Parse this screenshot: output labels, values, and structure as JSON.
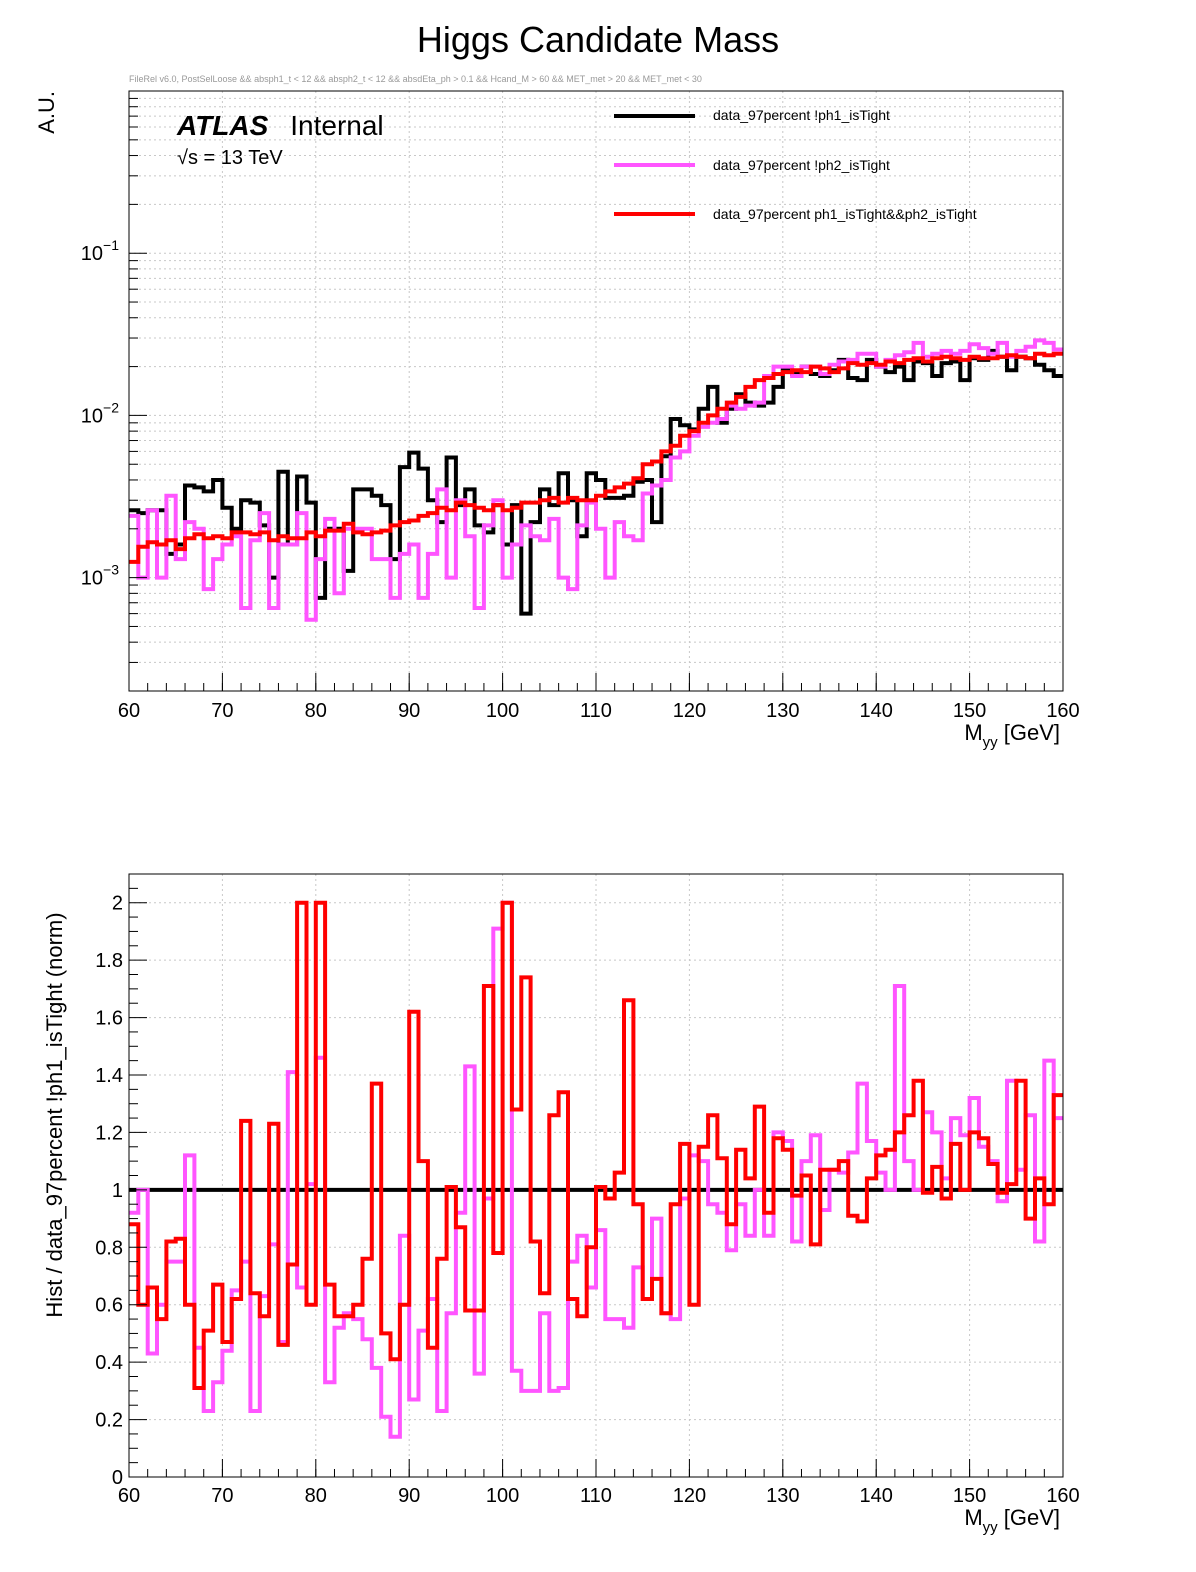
{
  "page": {
    "title": "Higgs Candidate Mass",
    "cut_string": "FileRel v6.0, PostSelLoose &&  absph1_t < 12 && absph2_t < 12 && absdEta_ph > 0.1 && Hcand_M > 60 && MET_met > 20 && MET_met < 30",
    "atlas_label": "ATLAS",
    "atlas_status": "Internal",
    "energy_label": "√s = 13 TeV"
  },
  "colors": {
    "black_series": "#000000",
    "magenta_series": "#ff55ff",
    "red_series": "#ff0000",
    "grid": "#c8c8c8"
  },
  "chart_data": [
    {
      "type": "line",
      "style": "step-histogram",
      "panel": "top",
      "yscale": "log",
      "ylabel": "A.U.",
      "xlabel_main": "M",
      "xlabel_sub": "yy",
      "xlabel_unit": " [GeV]",
      "xlim": [
        60,
        160
      ],
      "ylim": [
        0.0002,
        1
      ],
      "grid": true,
      "legend_placement": "top-right",
      "x_ticks": [
        60,
        70,
        80,
        90,
        100,
        110,
        120,
        130,
        140,
        150,
        160
      ],
      "y_ticks": [
        {
          "value": 0.001,
          "base": "10",
          "exp": "−3"
        },
        {
          "value": 0.01,
          "base": "10",
          "exp": "−2"
        },
        {
          "value": 0.1,
          "base": "10",
          "exp": "−1"
        }
      ],
      "bin_width": 1,
      "series": [
        {
          "name": "data_97percent  !ph1_isTight",
          "color": "#000000",
          "values": [
            0.0026,
            0.0025,
            0.0026,
            0.0026,
            0.0014,
            0.0016,
            0.0037,
            0.0036,
            0.0034,
            0.004,
            0.0027,
            0.002,
            0.003,
            0.0029,
            0.0021,
            0.001,
            0.0045,
            0.0016,
            0.0042,
            0.0029,
            0.00075,
            0.002,
            0.002,
            0.0011,
            0.0035,
            0.0035,
            0.0032,
            0.0028,
            0.0013,
            0.0048,
            0.0059,
            0.0047,
            0.003,
            0.0022,
            0.0055,
            0.0028,
            0.0035,
            0.0021,
            0.0019,
            0.0028,
            0.0016,
            0.0028,
            0.0006,
            0.0022,
            0.0035,
            0.0028,
            0.0044,
            0.003,
            0.0018,
            0.0044,
            0.004,
            0.0031,
            0.0031,
            0.0032,
            0.0039,
            0.004,
            0.0022,
            0.0056,
            0.0095,
            0.0087,
            0.0082,
            0.011,
            0.015,
            0.009,
            0.011,
            0.0135,
            0.012,
            0.0115,
            0.012,
            0.015,
            0.019,
            0.018,
            0.02,
            0.018,
            0.0175,
            0.019,
            0.022,
            0.017,
            0.0165,
            0.022,
            0.02,
            0.0185,
            0.02,
            0.0165,
            0.0215,
            0.021,
            0.0175,
            0.021,
            0.0215,
            0.0165,
            0.0225,
            0.022,
            0.025,
            0.023,
            0.019,
            0.023,
            0.0225,
            0.0205,
            0.019,
            0.0175
          ]
        },
        {
          "name": "data_97percent  !ph2_isTight",
          "color": "#ff55ff",
          "values": [
            0.0024,
            0.001,
            0.0026,
            0.001,
            0.0032,
            0.0013,
            0.0022,
            0.002,
            0.00085,
            0.0013,
            0.0016,
            0.0018,
            0.00065,
            0.0017,
            0.0025,
            0.00065,
            0.0016,
            0.0016,
            0.0025,
            0.00055,
            0.0013,
            0.0023,
            0.0008,
            0.002,
            0.002,
            0.002,
            0.0013,
            0.0013,
            0.00075,
            0.0014,
            0.0016,
            0.00075,
            0.0014,
            0.0035,
            0.001,
            0.003,
            0.0018,
            0.00065,
            0.0021,
            0.003,
            0.001,
            0.0016,
            0.0021,
            0.0018,
            0.0017,
            0.0023,
            0.001,
            0.00085,
            0.0021,
            0.0029,
            0.002,
            0.001,
            0.0022,
            0.0018,
            0.0017,
            0.0033,
            0.0037,
            0.004,
            0.0055,
            0.006,
            0.0075,
            0.0085,
            0.009,
            0.0095,
            0.0115,
            0.011,
            0.0115,
            0.012,
            0.0175,
            0.02,
            0.02,
            0.0175,
            0.02,
            0.02,
            0.018,
            0.0205,
            0.0215,
            0.022,
            0.024,
            0.024,
            0.02,
            0.022,
            0.0235,
            0.0245,
            0.028,
            0.023,
            0.024,
            0.025,
            0.024,
            0.025,
            0.0275,
            0.026,
            0.024,
            0.028,
            0.023,
            0.025,
            0.0265,
            0.029,
            0.028,
            0.0255
          ]
        },
        {
          "name": "data_97percent  ph1_isTight&&ph2_isTight",
          "color": "#ff0000",
          "values": [
            0.00125,
            0.00155,
            0.00165,
            0.0016,
            0.0017,
            0.0015,
            0.00175,
            0.00185,
            0.00175,
            0.0018,
            0.00175,
            0.0019,
            0.0019,
            0.00185,
            0.0019,
            0.0017,
            0.0018,
            0.00175,
            0.00175,
            0.0019,
            0.0018,
            0.00195,
            0.00195,
            0.00215,
            0.0019,
            0.00185,
            0.0019,
            0.00195,
            0.0021,
            0.0022,
            0.00225,
            0.0024,
            0.0025,
            0.0027,
            0.0026,
            0.0029,
            0.0028,
            0.0027,
            0.0026,
            0.0028,
            0.0026,
            0.0027,
            0.0029,
            0.0029,
            0.003,
            0.0031,
            0.0029,
            0.0031,
            0.003,
            0.003,
            0.0032,
            0.0034,
            0.0036,
            0.0038,
            0.0041,
            0.005,
            0.0052,
            0.006,
            0.0065,
            0.0075,
            0.008,
            0.009,
            0.01,
            0.011,
            0.012,
            0.013,
            0.015,
            0.0165,
            0.017,
            0.018,
            0.0185,
            0.019,
            0.0185,
            0.02,
            0.0195,
            0.0185,
            0.0195,
            0.021,
            0.0205,
            0.021,
            0.0205,
            0.0215,
            0.021,
            0.022,
            0.0225,
            0.0215,
            0.0225,
            0.023,
            0.0225,
            0.022,
            0.023,
            0.0225,
            0.0225,
            0.023,
            0.0235,
            0.023,
            0.0225,
            0.024,
            0.0235,
            0.024
          ]
        }
      ]
    },
    {
      "type": "line",
      "style": "step-histogram",
      "panel": "bottom",
      "yscale": "linear",
      "ylabel": "Hist / data_97percent  !ph1_isTight (norm)",
      "xlabel_main": "M",
      "xlabel_sub": "yy",
      "xlabel_unit": " [GeV]",
      "xlim": [
        60,
        160
      ],
      "ylim": [
        0,
        2.1
      ],
      "grid": true,
      "x_ticks": [
        60,
        70,
        80,
        90,
        100,
        110,
        120,
        130,
        140,
        150,
        160
      ],
      "y_ticks": [
        0,
        0.2,
        0.4,
        0.6,
        0.8,
        1,
        1.2,
        1.4,
        1.6,
        1.8,
        2
      ],
      "bin_width": 1,
      "reference_value": 1,
      "series": [
        {
          "name": "magenta ratio",
          "color": "#ff55ff",
          "values": [
            0.92,
            1.0,
            0.43,
            0.6,
            0.75,
            0.75,
            1.12,
            0.45,
            0.23,
            0.33,
            0.44,
            0.65,
            0.75,
            0.23,
            0.63,
            0.81,
            0.47,
            1.41,
            0.66,
            1.02,
            1.46,
            0.33,
            0.52,
            0.57,
            0.55,
            0.48,
            0.38,
            0.21,
            0.14,
            0.84,
            0.27,
            0.51,
            0.62,
            0.23,
            0.57,
            0.92,
            1.43,
            0.36,
            0.97,
            1.91,
            2.0,
            0.37,
            0.3,
            0.3,
            0.57,
            0.3,
            0.31,
            0.75,
            0.84,
            0.66,
            0.86,
            0.55,
            0.55,
            0.52,
            0.73,
            0.62,
            0.9,
            0.57,
            0.55,
            0.97,
            1.12,
            1.1,
            0.95,
            0.92,
            0.79,
            0.95,
            0.84,
            1.0,
            0.84,
            1.2,
            1.17,
            0.82,
            1.1,
            1.19,
            0.93,
            1.07,
            1.06,
            1.13,
            1.37,
            1.17,
            1.06,
            1.0,
            1.71,
            1.1,
            1.0,
            1.27,
            1.2,
            1.04,
            1.25,
            1.19,
            1.32,
            1.15,
            1.1,
            0.96,
            1.38,
            1.07,
            1.26,
            0.82,
            1.45,
            1.25
          ]
        },
        {
          "name": "red ratio",
          "color": "#ff0000",
          "values": [
            0.88,
            0.6,
            0.66,
            0.55,
            0.82,
            0.83,
            0.6,
            0.31,
            0.51,
            0.67,
            0.47,
            0.62,
            1.24,
            0.64,
            0.56,
            1.23,
            0.46,
            0.74,
            2.0,
            0.6,
            2.0,
            0.67,
            0.56,
            0.56,
            0.6,
            0.76,
            1.37,
            0.5,
            0.41,
            0.6,
            1.62,
            1.1,
            0.45,
            0.76,
            1.01,
            0.87,
            0.58,
            0.58,
            1.71,
            0.78,
            2.0,
            1.28,
            1.74,
            0.82,
            0.64,
            1.26,
            1.34,
            0.62,
            0.56,
            0.8,
            1.01,
            0.97,
            1.06,
            1.66,
            0.95,
            0.62,
            0.69,
            0.57,
            0.95,
            1.16,
            0.6,
            1.15,
            1.26,
            1.11,
            0.88,
            1.14,
            1.04,
            1.29,
            0.92,
            1.18,
            1.14,
            0.98,
            1.05,
            0.81,
            1.07,
            1.07,
            1.1,
            0.91,
            0.89,
            1.04,
            1.12,
            1.14,
            1.2,
            1.26,
            1.38,
            0.99,
            1.08,
            0.97,
            1.16,
            1.0,
            1.2,
            1.18,
            1.09,
            0.99,
            1.02,
            1.38,
            0.9,
            1.04,
            0.95,
            1.33
          ]
        },
        {
          "name": "black reference",
          "color": "#000000",
          "values": [
            1
          ]
        }
      ]
    }
  ]
}
